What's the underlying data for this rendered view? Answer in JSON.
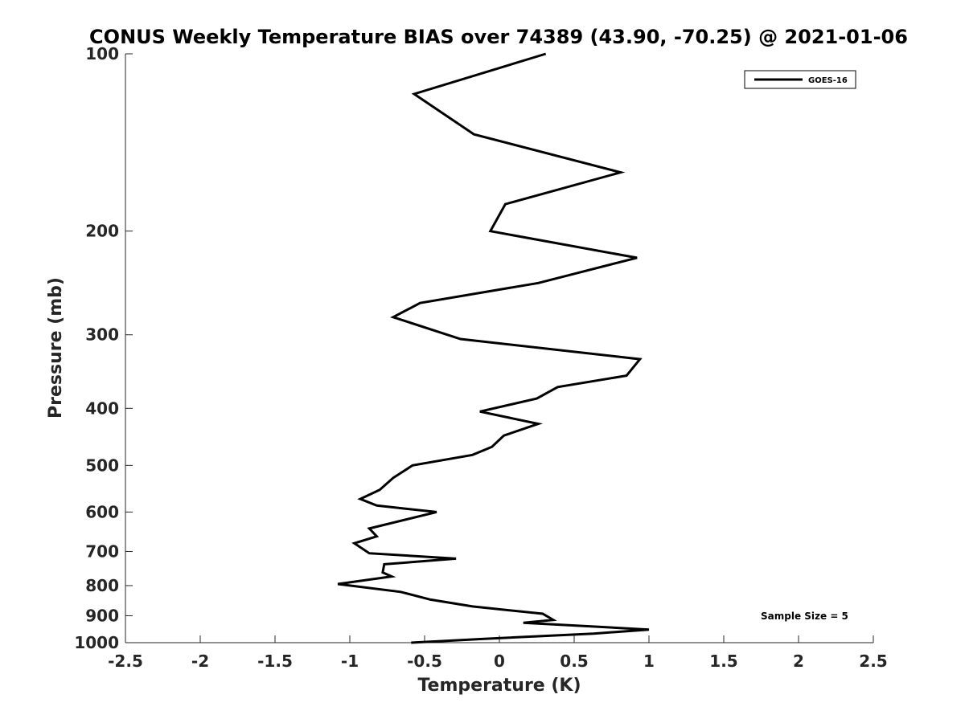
{
  "chart_data": {
    "type": "line",
    "title": "CONUS Weekly Temperature BIAS over 74389 (43.90, -70.25) @ 2021-01-06",
    "xlabel": "Temperature (K)",
    "ylabel": "Pressure (mb)",
    "xlim": [
      -2.5,
      2.5
    ],
    "ylim": [
      1000,
      100
    ],
    "yscale": "log",
    "x_ticks": [
      "-2.5",
      "-2",
      "-1.5",
      "-1",
      "-0.5",
      "0",
      "0.5",
      "1",
      "1.5",
      "2",
      "2.5"
    ],
    "y_ticks": [
      "100",
      "200",
      "300",
      "400",
      "500",
      "600",
      "700",
      "800",
      "900",
      "1000"
    ],
    "grid": false,
    "legend_position": "top-right",
    "annotation": "Sample Size = 5",
    "series": [
      {
        "name": "GOES-16",
        "color": "#000000",
        "points": [
          {
            "p": 100,
            "t": 0.31
          },
          {
            "p": 117,
            "t": -0.57
          },
          {
            "p": 137,
            "t": -0.17
          },
          {
            "p": 159,
            "t": 0.81
          },
          {
            "p": 180,
            "t": 0.04
          },
          {
            "p": 200,
            "t": -0.06
          },
          {
            "p": 222,
            "t": 0.92
          },
          {
            "p": 245,
            "t": 0.26
          },
          {
            "p": 265,
            "t": -0.53
          },
          {
            "p": 280,
            "t": -0.71
          },
          {
            "p": 305,
            "t": -0.26
          },
          {
            "p": 330,
            "t": 0.94
          },
          {
            "p": 352,
            "t": 0.85
          },
          {
            "p": 368,
            "t": 0.39
          },
          {
            "p": 385,
            "t": 0.25
          },
          {
            "p": 405,
            "t": -0.13
          },
          {
            "p": 425,
            "t": 0.26
          },
          {
            "p": 445,
            "t": 0.03
          },
          {
            "p": 465,
            "t": -0.05
          },
          {
            "p": 480,
            "t": -0.18
          },
          {
            "p": 500,
            "t": -0.58
          },
          {
            "p": 525,
            "t": -0.71
          },
          {
            "p": 550,
            "t": -0.8
          },
          {
            "p": 570,
            "t": -0.93
          },
          {
            "p": 585,
            "t": -0.82
          },
          {
            "p": 600,
            "t": -0.42
          },
          {
            "p": 640,
            "t": -0.87
          },
          {
            "p": 660,
            "t": -0.82
          },
          {
            "p": 678,
            "t": -0.97
          },
          {
            "p": 705,
            "t": -0.87
          },
          {
            "p": 720,
            "t": -0.29
          },
          {
            "p": 736,
            "t": -0.77
          },
          {
            "p": 760,
            "t": -0.78
          },
          {
            "p": 772,
            "t": -0.72
          },
          {
            "p": 795,
            "t": -1.08
          },
          {
            "p": 820,
            "t": -0.66
          },
          {
            "p": 845,
            "t": -0.46
          },
          {
            "p": 868,
            "t": -0.18
          },
          {
            "p": 893,
            "t": 0.29
          },
          {
            "p": 915,
            "t": 0.36
          },
          {
            "p": 925,
            "t": 0.16
          },
          {
            "p": 950,
            "t": 1.0
          },
          {
            "p": 965,
            "t": 0.63
          },
          {
            "p": 985,
            "t": -0.1
          },
          {
            "p": 1000,
            "t": -0.59
          }
        ]
      }
    ]
  }
}
